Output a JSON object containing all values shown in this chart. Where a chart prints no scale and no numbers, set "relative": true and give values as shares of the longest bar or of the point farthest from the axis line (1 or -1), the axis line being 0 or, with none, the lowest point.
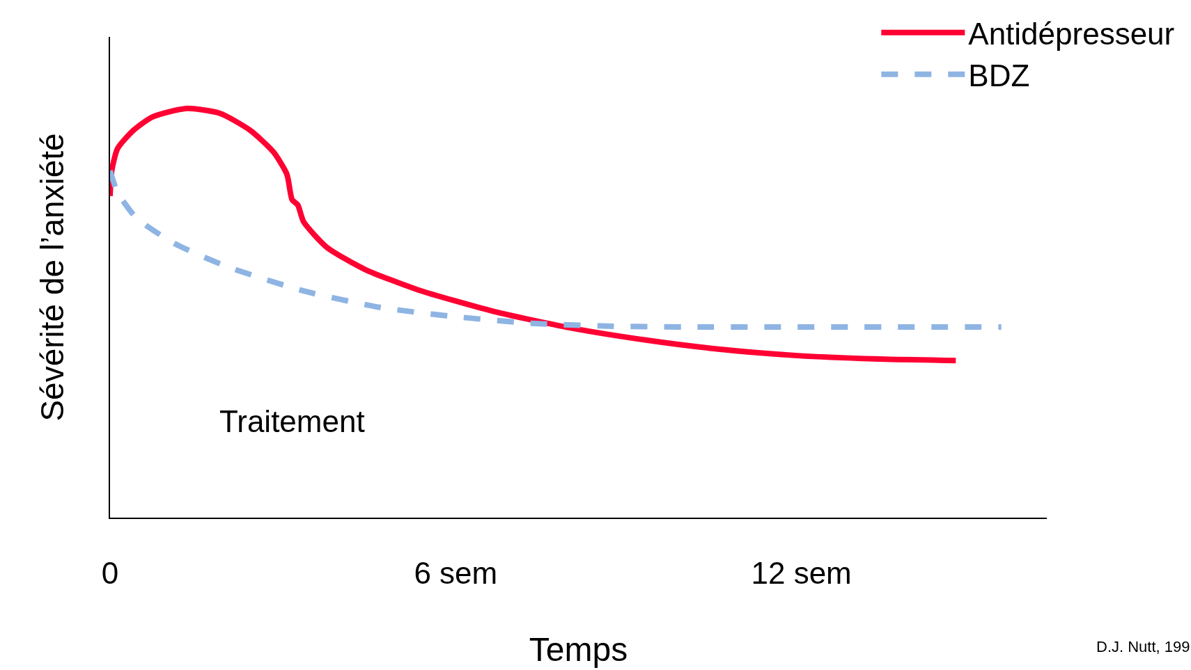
{
  "chart_data": {
    "type": "line",
    "relative": true,
    "xlabel": "Temps",
    "ylabel": "Sévérité de l’anxiété",
    "xlim": [
      0,
      16.26
    ],
    "xticks": [
      0,
      {
        "value": 6,
        "label": "6 sem"
      },
      {
        "value": 12,
        "label": "12 sem"
      }
    ],
    "legend": "top right",
    "marker": "none",
    "annotations": [
      "Traitement",
      "D.J. Nutt, 199"
    ],
    "series": [
      {
        "name": "Antidépresseur",
        "color": "#ff0033",
        "line_style": "solid",
        "x": [
          0,
          0.03,
          0.13,
          0.4,
          0.73,
          1.32,
          1.91,
          2.44,
          2.84,
          3.07,
          3.16,
          3.26,
          3.36,
          3.76,
          4.42,
          5.34,
          6.66,
          7.98,
          9.3,
          10.62,
          11.93,
          13.25,
          14.68
        ],
        "values": [
          0.786,
          0.848,
          0.902,
          0.946,
          0.979,
          1.0,
          0.988,
          0.946,
          0.893,
          0.839,
          0.777,
          0.764,
          0.723,
          0.661,
          0.607,
          0.557,
          0.504,
          0.464,
          0.434,
          0.411,
          0.396,
          0.388,
          0.384
        ]
      },
      {
        "name": "BDZ",
        "color": "#8eb4e3",
        "line_style": "dashed",
        "x": [
          0,
          0.13,
          0.46,
          1.12,
          2.04,
          3.36,
          4.68,
          6.0,
          7.32,
          8.64,
          9.96,
          15.47
        ],
        "values": [
          0.848,
          0.795,
          0.732,
          0.67,
          0.613,
          0.554,
          0.514,
          0.491,
          0.475,
          0.468,
          0.466,
          0.466
        ]
      }
    ]
  }
}
